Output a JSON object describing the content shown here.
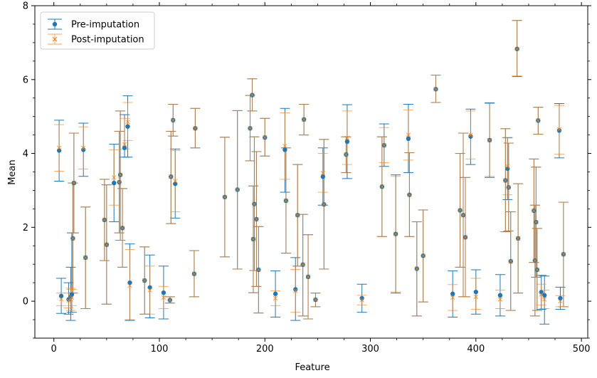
{
  "chart_data": {
    "type": "scatter",
    "title": "",
    "xlabel": "Feature",
    "ylabel": "Mean",
    "xlim": [
      -18,
      506
    ],
    "ylim": [
      -1.0,
      8.0
    ],
    "xticks": [
      0,
      100,
      200,
      300,
      400,
      500
    ],
    "yticks": [
      0,
      2,
      4,
      6,
      8
    ],
    "grid": false,
    "legend_position": "top-left",
    "series": [
      {
        "name": "Pre-imputation",
        "color": "#1f77b4",
        "marker": "circle",
        "points": [
          {
            "x": 5,
            "y": 4.08,
            "lo": 3.25,
            "hi": 4.9
          },
          {
            "x": 7,
            "y": 0.14,
            "lo": -0.33,
            "hi": 0.62
          },
          {
            "x": 14,
            "y": 0.05,
            "lo": -0.35,
            "hi": 0.5
          },
          {
            "x": 16,
            "y": 0.12,
            "lo": -0.52,
            "hi": 0.92
          },
          {
            "x": 17,
            "y": 0.18,
            "lo": -0.3,
            "hi": 1.85
          },
          {
            "x": 18,
            "y": 1.7,
            "lo": 0.22,
            "hi": 3.2
          },
          {
            "x": 19,
            "y": 3.2,
            "lo": 1.85,
            "hi": 4.55
          },
          {
            "x": 28,
            "y": 4.1,
            "lo": 3.38,
            "hi": 4.82
          },
          {
            "x": 30,
            "y": 1.18,
            "lo": -0.2,
            "hi": 2.55
          },
          {
            "x": 48,
            "y": 2.2,
            "lo": 1.1,
            "hi": 3.3
          },
          {
            "x": 50,
            "y": 1.53,
            "lo": -0.08,
            "hi": 3.15
          },
          {
            "x": 57,
            "y": 3.2,
            "lo": 2.15,
            "hi": 4.25
          },
          {
            "x": 62,
            "y": 3.22,
            "lo": 1.85,
            "hi": 4.6
          },
          {
            "x": 63,
            "y": 3.42,
            "lo": 1.65,
            "hi": 5.15
          },
          {
            "x": 65,
            "y": 1.98,
            "lo": 0.92,
            "hi": 3.05
          },
          {
            "x": 67,
            "y": 4.15,
            "lo": 3.9,
            "hi": 5.05
          },
          {
            "x": 70,
            "y": 4.73,
            "lo": 3.9,
            "hi": 5.56
          },
          {
            "x": 72,
            "y": 0.5,
            "lo": -0.52,
            "hi": 1.55
          },
          {
            "x": 86,
            "y": 0.56,
            "lo": -0.35,
            "hi": 1.47
          },
          {
            "x": 91,
            "y": 0.37,
            "lo": -0.45,
            "hi": 1.25
          },
          {
            "x": 104,
            "y": 0.23,
            "lo": -0.48,
            "hi": 0.95
          },
          {
            "x": 110,
            "y": 0.03,
            "lo": -0.05,
            "hi": 0.12
          },
          {
            "x": 111,
            "y": 3.37,
            "lo": 2.1,
            "hi": 4.6
          },
          {
            "x": 113,
            "y": 4.9,
            "lo": 4.47,
            "hi": 5.33
          },
          {
            "x": 115,
            "y": 3.18,
            "lo": 2.25,
            "hi": 4.12
          },
          {
            "x": 133,
            "y": 0.74,
            "lo": 0.12,
            "hi": 1.37
          },
          {
            "x": 134,
            "y": 4.68,
            "lo": 4.15,
            "hi": 5.22
          },
          {
            "x": 162,
            "y": 2.82,
            "lo": 1.2,
            "hi": 4.44
          },
          {
            "x": 174,
            "y": 3.02,
            "lo": 0.87,
            "hi": 5.16
          },
          {
            "x": 186,
            "y": 4.68,
            "lo": 3.8,
            "hi": 5.57
          },
          {
            "x": 188,
            "y": 5.58,
            "lo": 5.15,
            "hi": 6.02
          },
          {
            "x": 189,
            "y": 1.68,
            "lo": 0.23,
            "hi": 3.12
          },
          {
            "x": 190,
            "y": 2.63,
            "lo": 0.83,
            "hi": 4.45
          },
          {
            "x": 192,
            "y": 2.22,
            "lo": 0.4,
            "hi": 4.05
          },
          {
            "x": 194,
            "y": 0.85,
            "lo": -0.32,
            "hi": 2.02
          },
          {
            "x": 200,
            "y": 4.43,
            "lo": 3.93,
            "hi": 4.95
          },
          {
            "x": 210,
            "y": 0.2,
            "lo": -0.43,
            "hi": 0.82
          },
          {
            "x": 219,
            "y": 4.1,
            "lo": 2.95,
            "hi": 5.22
          },
          {
            "x": 220,
            "y": 2.72,
            "lo": 1.3,
            "hi": 4.15
          },
          {
            "x": 229,
            "y": 0.32,
            "lo": -0.52,
            "hi": 1.18
          },
          {
            "x": 231,
            "y": 2.33,
            "lo": 0.95,
            "hi": 3.7
          },
          {
            "x": 236,
            "y": 0.99,
            "lo": -0.4,
            "hi": 2.35
          },
          {
            "x": 237,
            "y": 4.92,
            "lo": 4.5,
            "hi": 5.33
          },
          {
            "x": 241,
            "y": 0.66,
            "lo": -0.48,
            "hi": 1.8
          },
          {
            "x": 248,
            "y": 0.04,
            "lo": -0.15,
            "hi": 0.22
          },
          {
            "x": 255,
            "y": 3.37,
            "lo": 2.6,
            "hi": 4.15
          },
          {
            "x": 256,
            "y": 2.62,
            "lo": 0.87,
            "hi": 4.38
          },
          {
            "x": 277,
            "y": 3.97,
            "lo": 3.48,
            "hi": 4.45
          },
          {
            "x": 278,
            "y": 4.32,
            "lo": 3.32,
            "hi": 5.32
          },
          {
            "x": 292,
            "y": 0.08,
            "lo": -0.3,
            "hi": 0.46
          },
          {
            "x": 311,
            "y": 3.1,
            "lo": 1.75,
            "hi": 4.45
          },
          {
            "x": 313,
            "y": 4.22,
            "lo": 3.65,
            "hi": 4.8
          },
          {
            "x": 324,
            "y": 1.82,
            "lo": 0.22,
            "hi": 3.42
          },
          {
            "x": 336,
            "y": 4.4,
            "lo": 3.48,
            "hi": 5.33
          },
          {
            "x": 337,
            "y": 2.88,
            "lo": 1.75,
            "hi": 4.02
          },
          {
            "x": 344,
            "y": 0.88,
            "lo": -0.4,
            "hi": 2.15
          },
          {
            "x": 350,
            "y": 1.23,
            "lo": -0.02,
            "hi": 2.47
          },
          {
            "x": 362,
            "y": 5.74,
            "lo": 5.38,
            "hi": 6.12
          },
          {
            "x": 378,
            "y": 0.2,
            "lo": -0.43,
            "hi": 0.82
          },
          {
            "x": 385,
            "y": 2.46,
            "lo": 0.92,
            "hi": 4.0
          },
          {
            "x": 388,
            "y": 2.33,
            "lo": 0.12,
            "hi": 4.55
          },
          {
            "x": 390,
            "y": 1.73,
            "lo": 0.12,
            "hi": 3.35
          },
          {
            "x": 395,
            "y": 4.46,
            "lo": 3.7,
            "hi": 5.2
          },
          {
            "x": 400,
            "y": 0.25,
            "lo": -0.35,
            "hi": 0.85
          },
          {
            "x": 413,
            "y": 4.36,
            "lo": 3.35,
            "hi": 5.37
          },
          {
            "x": 423,
            "y": 0.16,
            "lo": -0.4,
            "hi": 0.72
          },
          {
            "x": 428,
            "y": 3.27,
            "lo": 1.88,
            "hi": 4.67
          },
          {
            "x": 430,
            "y": 3.59,
            "lo": 2.75,
            "hi": 4.43
          },
          {
            "x": 431,
            "y": 3.08,
            "lo": 1.9,
            "hi": 4.28
          },
          {
            "x": 433,
            "y": 1.08,
            "lo": -0.25,
            "hi": 2.42
          },
          {
            "x": 439,
            "y": 6.83,
            "lo": 6.08,
            "hi": 7.6
          },
          {
            "x": 440,
            "y": 1.7,
            "lo": 0.22,
            "hi": 3.18
          },
          {
            "x": 455,
            "y": 2.45,
            "lo": 1.05,
            "hi": 3.85
          },
          {
            "x": 456,
            "y": 1.1,
            "lo": -0.4,
            "hi": 2.6
          },
          {
            "x": 457,
            "y": 2.14,
            "lo": 0.65,
            "hi": 3.63
          },
          {
            "x": 458,
            "y": 0.85,
            "lo": -0.25,
            "hi": 1.97
          },
          {
            "x": 459,
            "y": 4.89,
            "lo": 4.52,
            "hi": 5.25
          },
          {
            "x": 462,
            "y": 0.24,
            "lo": -0.22,
            "hi": 0.7
          },
          {
            "x": 465,
            "y": 0.16,
            "lo": -0.62,
            "hi": 0.68
          },
          {
            "x": 479,
            "y": 4.62,
            "lo": 3.88,
            "hi": 5.35
          },
          {
            "x": 480,
            "y": 0.08,
            "lo": -0.22,
            "hi": 0.38
          },
          {
            "x": 483,
            "y": 1.27,
            "lo": -0.15,
            "hi": 2.68
          }
        ]
      },
      {
        "name": "Post-imputation",
        "color": "#ff7f0e",
        "marker": "x",
        "points": [
          {
            "x": 5,
            "y": 4.15,
            "lo": 3.52,
            "hi": 4.78
          },
          {
            "x": 7,
            "y": 0.06,
            "lo": -0.12,
            "hi": 0.22
          },
          {
            "x": 14,
            "y": 0.02,
            "lo": -0.18,
            "hi": 0.22
          },
          {
            "x": 16,
            "y": 0.05,
            "lo": -0.25,
            "hi": 0.35
          },
          {
            "x": 17,
            "y": 0.1,
            "lo": -0.12,
            "hi": 0.32
          },
          {
            "x": 18,
            "y": 1.7,
            "lo": 0.22,
            "hi": 3.2
          },
          {
            "x": 19,
            "y": 3.2,
            "lo": 1.85,
            "hi": 4.55
          },
          {
            "x": 28,
            "y": 4.15,
            "lo": 3.58,
            "hi": 4.72
          },
          {
            "x": 30,
            "y": 1.18,
            "lo": -0.2,
            "hi": 2.55
          },
          {
            "x": 48,
            "y": 2.2,
            "lo": 1.1,
            "hi": 3.3
          },
          {
            "x": 50,
            "y": 1.53,
            "lo": -0.08,
            "hi": 3.15
          },
          {
            "x": 57,
            "y": 3.35,
            "lo": 2.6,
            "hi": 4.1
          },
          {
            "x": 62,
            "y": 3.22,
            "lo": 1.85,
            "hi": 4.6
          },
          {
            "x": 63,
            "y": 3.42,
            "lo": 1.65,
            "hi": 5.15
          },
          {
            "x": 65,
            "y": 1.98,
            "lo": 0.92,
            "hi": 3.05
          },
          {
            "x": 67,
            "y": 4.25,
            "lo": 4.12,
            "hi": 4.95
          },
          {
            "x": 70,
            "y": 4.85,
            "lo": 4.35,
            "hi": 5.38
          },
          {
            "x": 72,
            "y": 0.42,
            "lo": -0.5,
            "hi": 1.4
          },
          {
            "x": 86,
            "y": 0.56,
            "lo": -0.35,
            "hi": 1.47
          },
          {
            "x": 91,
            "y": 0.3,
            "lo": -0.35,
            "hi": 0.95
          },
          {
            "x": 104,
            "y": 0.1,
            "lo": -0.2,
            "hi": 0.4
          },
          {
            "x": 110,
            "y": 0.03,
            "lo": -0.05,
            "hi": 0.12
          },
          {
            "x": 111,
            "y": 3.37,
            "lo": 2.1,
            "hi": 4.6
          },
          {
            "x": 113,
            "y": 4.9,
            "lo": 4.47,
            "hi": 5.33
          },
          {
            "x": 115,
            "y": 3.25,
            "lo": 2.42,
            "hi": 4.08
          },
          {
            "x": 133,
            "y": 0.74,
            "lo": 0.12,
            "hi": 1.37
          },
          {
            "x": 134,
            "y": 4.68,
            "lo": 4.15,
            "hi": 5.22
          },
          {
            "x": 162,
            "y": 2.82,
            "lo": 1.2,
            "hi": 4.44
          },
          {
            "x": 174,
            "y": 3.02,
            "lo": 0.87,
            "hi": 5.16
          },
          {
            "x": 186,
            "y": 4.68,
            "lo": 3.8,
            "hi": 5.57
          },
          {
            "x": 188,
            "y": 5.58,
            "lo": 5.15,
            "hi": 6.02
          },
          {
            "x": 189,
            "y": 1.68,
            "lo": 0.23,
            "hi": 3.12
          },
          {
            "x": 190,
            "y": 2.63,
            "lo": 0.83,
            "hi": 4.45
          },
          {
            "x": 192,
            "y": 2.22,
            "lo": 0.4,
            "hi": 4.05
          },
          {
            "x": 194,
            "y": 0.85,
            "lo": -0.32,
            "hi": 2.02
          },
          {
            "x": 200,
            "y": 4.43,
            "lo": 3.93,
            "hi": 4.95
          },
          {
            "x": 210,
            "y": 0.08,
            "lo": -0.12,
            "hi": 0.28
          },
          {
            "x": 219,
            "y": 4.2,
            "lo": 3.3,
            "hi": 5.1
          },
          {
            "x": 220,
            "y": 2.72,
            "lo": 1.3,
            "hi": 4.15
          },
          {
            "x": 229,
            "y": 0.28,
            "lo": -0.3,
            "hi": 0.86
          },
          {
            "x": 231,
            "y": 2.33,
            "lo": 0.95,
            "hi": 3.7
          },
          {
            "x": 236,
            "y": 0.99,
            "lo": -0.4,
            "hi": 2.35
          },
          {
            "x": 237,
            "y": 4.92,
            "lo": 4.5,
            "hi": 5.33
          },
          {
            "x": 241,
            "y": 0.66,
            "lo": -0.48,
            "hi": 1.8
          },
          {
            "x": 248,
            "y": 0.04,
            "lo": -0.15,
            "hi": 0.22
          },
          {
            "x": 255,
            "y": 3.47,
            "lo": 2.95,
            "hi": 4.0
          },
          {
            "x": 256,
            "y": 2.62,
            "lo": 0.87,
            "hi": 4.38
          },
          {
            "x": 277,
            "y": 3.97,
            "lo": 3.48,
            "hi": 4.45
          },
          {
            "x": 278,
            "y": 4.42,
            "lo": 3.7,
            "hi": 5.15
          },
          {
            "x": 292,
            "y": 0.03,
            "lo": -0.1,
            "hi": 0.16
          },
          {
            "x": 311,
            "y": 3.1,
            "lo": 1.75,
            "hi": 4.45
          },
          {
            "x": 313,
            "y": 4.22,
            "lo": 3.75,
            "hi": 4.7
          },
          {
            "x": 324,
            "y": 1.82,
            "lo": 0.25,
            "hi": 3.38
          },
          {
            "x": 336,
            "y": 4.5,
            "lo": 3.82,
            "hi": 5.18
          },
          {
            "x": 337,
            "y": 2.88,
            "lo": 1.75,
            "hi": 4.02
          },
          {
            "x": 344,
            "y": 0.88,
            "lo": -0.4,
            "hi": 2.15
          },
          {
            "x": 350,
            "y": 1.23,
            "lo": -0.02,
            "hi": 2.47
          },
          {
            "x": 362,
            "y": 5.74,
            "lo": 5.38,
            "hi": 6.12
          },
          {
            "x": 378,
            "y": 0.1,
            "lo": -0.25,
            "hi": 0.45
          },
          {
            "x": 385,
            "y": 2.46,
            "lo": 0.92,
            "hi": 4.0
          },
          {
            "x": 388,
            "y": 2.33,
            "lo": 0.12,
            "hi": 4.55
          },
          {
            "x": 390,
            "y": 1.73,
            "lo": 0.12,
            "hi": 3.35
          },
          {
            "x": 395,
            "y": 4.5,
            "lo": 3.85,
            "hi": 5.15
          },
          {
            "x": 400,
            "y": 0.12,
            "lo": -0.22,
            "hi": 0.62
          },
          {
            "x": 413,
            "y": 4.36,
            "lo": 3.38,
            "hi": 5.35
          },
          {
            "x": 423,
            "y": 0.05,
            "lo": -0.2,
            "hi": 0.3
          },
          {
            "x": 428,
            "y": 3.27,
            "lo": 1.88,
            "hi": 4.67
          },
          {
            "x": 430,
            "y": 3.65,
            "lo": 2.88,
            "hi": 4.42
          },
          {
            "x": 431,
            "y": 3.08,
            "lo": 1.9,
            "hi": 4.28
          },
          {
            "x": 433,
            "y": 1.08,
            "lo": -0.25,
            "hi": 2.42
          },
          {
            "x": 439,
            "y": 6.83,
            "lo": 6.1,
            "hi": 7.6
          },
          {
            "x": 440,
            "y": 1.7,
            "lo": 0.22,
            "hi": 3.18
          },
          {
            "x": 455,
            "y": 2.45,
            "lo": 1.05,
            "hi": 3.85
          },
          {
            "x": 456,
            "y": 1.1,
            "lo": -0.4,
            "hi": 2.6
          },
          {
            "x": 457,
            "y": 2.14,
            "lo": 0.65,
            "hi": 3.63
          },
          {
            "x": 458,
            "y": 0.85,
            "lo": -0.25,
            "hi": 1.97
          },
          {
            "x": 459,
            "y": 4.89,
            "lo": 4.52,
            "hi": 5.25
          },
          {
            "x": 462,
            "y": 0.18,
            "lo": -0.1,
            "hi": 0.46
          },
          {
            "x": 465,
            "y": 0.05,
            "lo": -0.2,
            "hi": 0.3
          },
          {
            "x": 479,
            "y": 4.65,
            "lo": 3.98,
            "hi": 5.3
          },
          {
            "x": 480,
            "y": 0.0,
            "lo": -0.15,
            "hi": 0.15
          },
          {
            "x": 483,
            "y": 1.27,
            "lo": -0.15,
            "hi": 2.68
          }
        ]
      }
    ]
  }
}
